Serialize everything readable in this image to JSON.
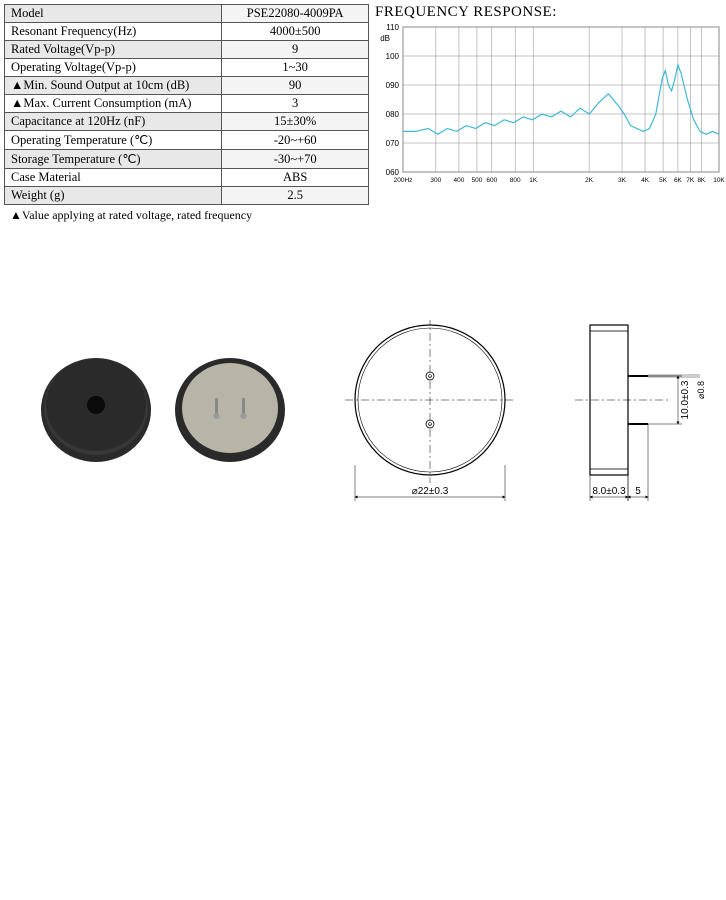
{
  "spec_table": {
    "rows": [
      {
        "label": "Model",
        "value": "PSE22080-4009PA"
      },
      {
        "label": "Resonant Frequency(Hz)",
        "value": "4000±500"
      },
      {
        "label": "Rated Voltage(Vp-p)",
        "value": "9"
      },
      {
        "label": "Operating Voltage(Vp-p)",
        "value": "1~30"
      },
      {
        "label": "▲Min. Sound Output at 10cm (dB)",
        "value": "90"
      },
      {
        "label": "▲Max. Current Consumption (mA)",
        "value": "3"
      },
      {
        "label": "Capacitance at 120Hz (nF)",
        "value": "15±30%"
      },
      {
        "label": "Operating Temperature (℃)",
        "value": "-20~+60"
      },
      {
        "label": "Storage Temperature (℃)",
        "value": "-30~+70"
      },
      {
        "label": "Case Material",
        "value": "ABS"
      },
      {
        "label": "Weight (g)",
        "value": "2.5"
      }
    ],
    "footnote": "▲Value applying at rated voltage, rated frequency"
  },
  "chart": {
    "title": "FREQUENCY RESPONSE:",
    "type": "line",
    "ylabel": "dB",
    "ylim": [
      60,
      110
    ],
    "ytick_step": 10,
    "yticks": [
      "060",
      "070",
      "080",
      "090",
      "100",
      "110"
    ],
    "xticks": [
      "200Hz",
      "300",
      "400",
      "500",
      "600",
      "800",
      "1K",
      "2K",
      "3K",
      "4K",
      "5K",
      "6K",
      "7K",
      "8K",
      "10K"
    ],
    "x_log_positions": [
      0.0,
      0.104,
      0.177,
      0.234,
      0.281,
      0.355,
      0.412,
      0.589,
      0.693,
      0.766,
      0.823,
      0.87,
      0.909,
      0.944,
      1.0
    ],
    "line_color": "#3fb8d8",
    "grid_color": "#888888",
    "background_color": "#ffffff",
    "line_width": 1.2,
    "grid_width": 0.5,
    "label_fontsize": 8,
    "data_points": [
      {
        "x": 0.0,
        "y": 74
      },
      {
        "x": 0.04,
        "y": 74
      },
      {
        "x": 0.08,
        "y": 75
      },
      {
        "x": 0.11,
        "y": 73
      },
      {
        "x": 0.14,
        "y": 75
      },
      {
        "x": 0.17,
        "y": 74
      },
      {
        "x": 0.2,
        "y": 76
      },
      {
        "x": 0.23,
        "y": 75
      },
      {
        "x": 0.26,
        "y": 77
      },
      {
        "x": 0.29,
        "y": 76
      },
      {
        "x": 0.32,
        "y": 78
      },
      {
        "x": 0.35,
        "y": 77
      },
      {
        "x": 0.38,
        "y": 79
      },
      {
        "x": 0.41,
        "y": 78
      },
      {
        "x": 0.44,
        "y": 80
      },
      {
        "x": 0.47,
        "y": 79
      },
      {
        "x": 0.5,
        "y": 81
      },
      {
        "x": 0.53,
        "y": 79
      },
      {
        "x": 0.56,
        "y": 82
      },
      {
        "x": 0.59,
        "y": 80
      },
      {
        "x": 0.62,
        "y": 84
      },
      {
        "x": 0.65,
        "y": 87
      },
      {
        "x": 0.68,
        "y": 83
      },
      {
        "x": 0.7,
        "y": 80
      },
      {
        "x": 0.72,
        "y": 76
      },
      {
        "x": 0.74,
        "y": 75
      },
      {
        "x": 0.76,
        "y": 74
      },
      {
        "x": 0.78,
        "y": 75
      },
      {
        "x": 0.8,
        "y": 80
      },
      {
        "x": 0.82,
        "y": 92
      },
      {
        "x": 0.83,
        "y": 95
      },
      {
        "x": 0.84,
        "y": 90
      },
      {
        "x": 0.85,
        "y": 88
      },
      {
        "x": 0.86,
        "y": 92
      },
      {
        "x": 0.87,
        "y": 97
      },
      {
        "x": 0.88,
        "y": 94
      },
      {
        "x": 0.9,
        "y": 85
      },
      {
        "x": 0.92,
        "y": 78
      },
      {
        "x": 0.94,
        "y": 74
      },
      {
        "x": 0.96,
        "y": 73
      },
      {
        "x": 0.98,
        "y": 74
      },
      {
        "x": 1.0,
        "y": 73
      }
    ]
  },
  "drawing": {
    "dim_diameter": "⌀22±0.3",
    "dim_width": "8.0±0.3",
    "dim_pin_len": "5",
    "dim_pin_dia": "⌀0.8",
    "dim_pitch": "10.0±0.3",
    "photo_body_color": "#2a2a2a",
    "photo_disc_color": "#b8b4a8",
    "photo_pin_color": "#888888",
    "line_color": "#000000",
    "dim_fontsize": 10
  }
}
